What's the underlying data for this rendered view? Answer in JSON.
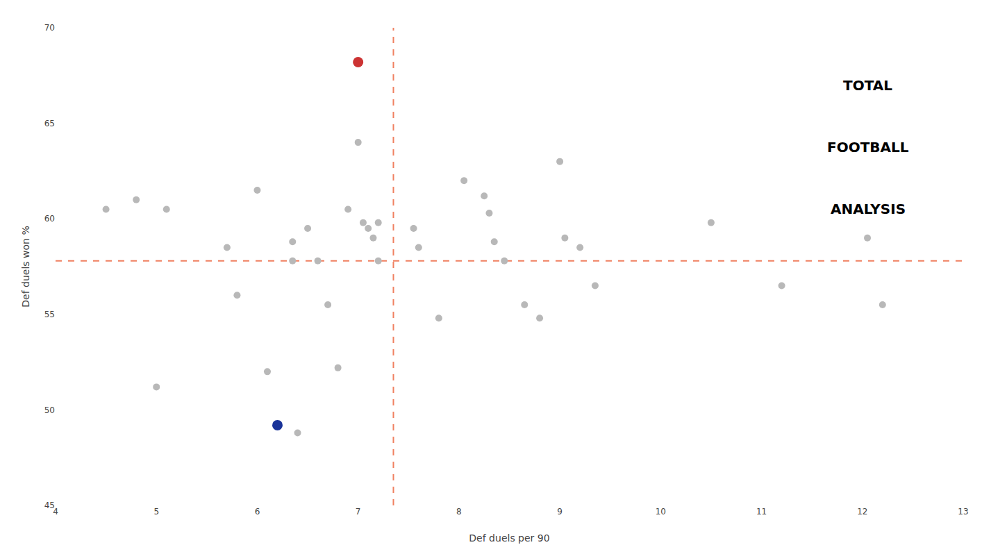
{
  "chart_data": {
    "type": "scatter",
    "xlabel": "Def duels per 90",
    "ylabel": "Def duels won %",
    "xlim": [
      4,
      13
    ],
    "ylim": [
      45,
      70
    ],
    "xticks": [
      4,
      5,
      6,
      7,
      8,
      9,
      10,
      11,
      12,
      13
    ],
    "yticks": [
      45,
      50,
      55,
      60,
      65,
      70
    ],
    "grid": false,
    "series": [
      {
        "color": "#b8b8b8",
        "marker": "circle",
        "x": [
          4.5,
          4.8,
          5.1,
          5.0,
          5.7,
          5.8,
          6.0,
          6.1,
          6.35,
          6.35,
          6.5,
          6.6,
          6.7,
          6.8,
          6.9,
          7.0,
          7.05,
          7.1,
          7.15,
          7.2,
          7.2,
          6.4,
          7.55,
          7.6,
          7.8,
          8.05,
          8.25,
          8.3,
          8.35,
          8.45,
          8.65,
          8.8,
          9.0,
          9.05,
          9.2,
          9.35,
          10.5,
          11.2,
          12.05,
          12.2
        ],
        "y": [
          60.5,
          61.0,
          60.5,
          51.2,
          58.5,
          56.0,
          61.5,
          52.0,
          58.8,
          57.8,
          59.5,
          57.8,
          55.5,
          52.2,
          60.5,
          64.0,
          59.8,
          59.5,
          59.0,
          59.8,
          57.8,
          48.8,
          59.5,
          58.5,
          54.8,
          62.0,
          61.2,
          60.3,
          58.8,
          57.8,
          55.5,
          54.8,
          63.0,
          59.0,
          58.5,
          56.5,
          59.8,
          56.5,
          59.0,
          55.5
        ]
      },
      {
        "color": "#cc3333",
        "marker": "circle",
        "x": [
          7.0
        ],
        "y": [
          68.2
        ]
      },
      {
        "color": "#1a3399",
        "marker": "circle",
        "x": [
          6.2
        ],
        "y": [
          49.2
        ]
      }
    ],
    "reference_lines": [
      {
        "y": 57.8,
        "color": "#f08060",
        "line_style": "dashed"
      },
      {
        "x": 7.35,
        "color": "#f08060",
        "line_style": "dashed"
      }
    ],
    "annotations": [
      "TOTAL",
      "FOOTBALL",
      "ANALYSIS"
    ]
  }
}
